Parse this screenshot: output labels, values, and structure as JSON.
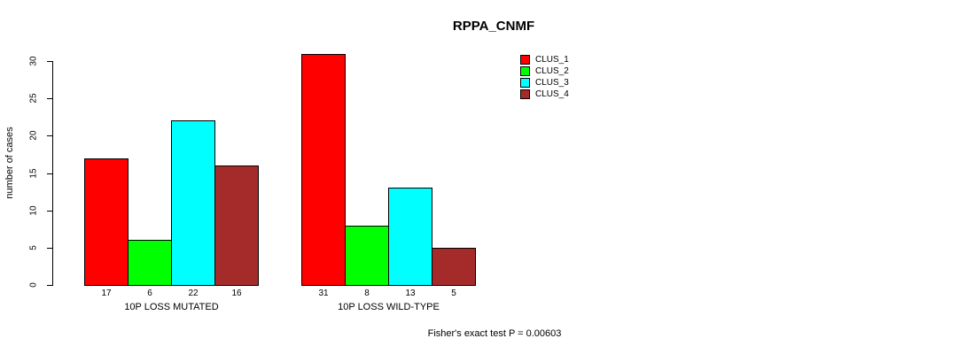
{
  "chart_data": {
    "type": "bar",
    "title": "RPPA_CNMF",
    "ylabel": "number of cases",
    "xlabel": "",
    "categories": [
      "10P LOSS MUTATED",
      "10P LOSS WILD-TYPE"
    ],
    "series": [
      {
        "name": "CLUS_1",
        "color": "#FF0000",
        "values": [
          17,
          31
        ]
      },
      {
        "name": "CLUS_2",
        "color": "#00FF00",
        "values": [
          6,
          8
        ]
      },
      {
        "name": "CLUS_3",
        "color": "#00FFFF",
        "values": [
          22,
          13
        ]
      },
      {
        "name": "CLUS_4",
        "color": "#A52A2A",
        "values": [
          16,
          5
        ]
      }
    ],
    "ylim": [
      0,
      30
    ],
    "yticks": [
      0,
      5,
      10,
      15,
      20,
      25,
      30
    ],
    "bar_value_labels": [
      [
        17,
        6,
        22,
        16
      ],
      [
        31,
        8,
        13,
        5
      ]
    ],
    "grid": false,
    "legend_position": "top-right",
    "annotation": "Fisher's exact test P = 0.00603"
  }
}
